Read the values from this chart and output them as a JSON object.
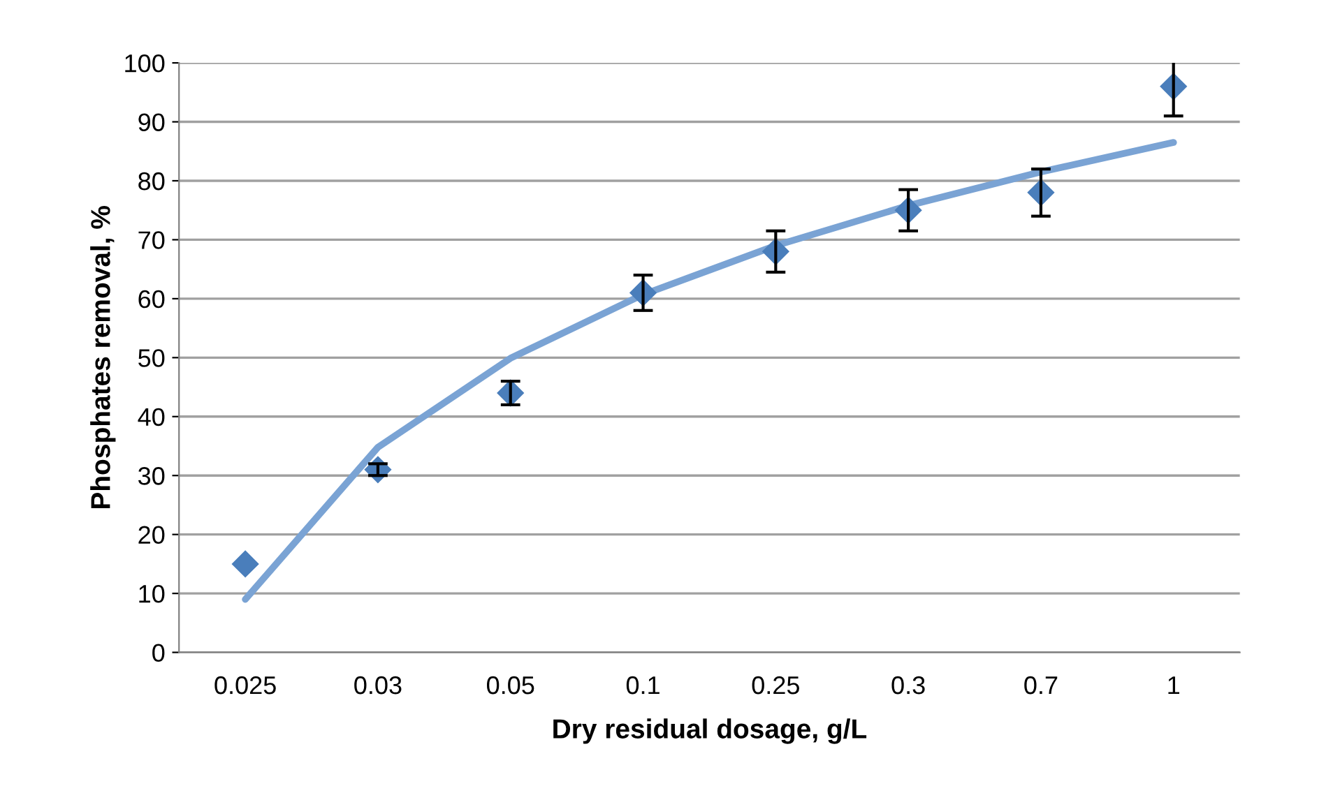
{
  "chart_data": {
    "type": "scatter",
    "xlabel": "Dry residual dosage, g/L",
    "ylabel": "Phosphates removal, %",
    "categories": [
      "0.025",
      "0.03",
      "0.05",
      "0.1",
      "0.25",
      "0.3",
      "0.7",
      "1"
    ],
    "series": [
      {
        "color": "#4a7ebb",
        "marker": "diamond",
        "values": [
          15,
          31,
          44,
          61,
          68,
          75,
          78,
          96
        ],
        "errors": [
          null,
          1,
          2,
          3,
          3.5,
          3.5,
          4,
          5
        ]
      },
      {
        "type": "line",
        "color": "#7aa3d4",
        "line_style": "solid",
        "values": [
          9,
          34.8,
          49.9,
          60.7,
          69,
          75.8,
          81.5,
          86.5
        ]
      }
    ],
    "ylim": [
      0,
      100
    ],
    "yticks": [
      0,
      10,
      20,
      30,
      40,
      50,
      60,
      70,
      80,
      90,
      100
    ],
    "grid": "y",
    "legend": false
  }
}
